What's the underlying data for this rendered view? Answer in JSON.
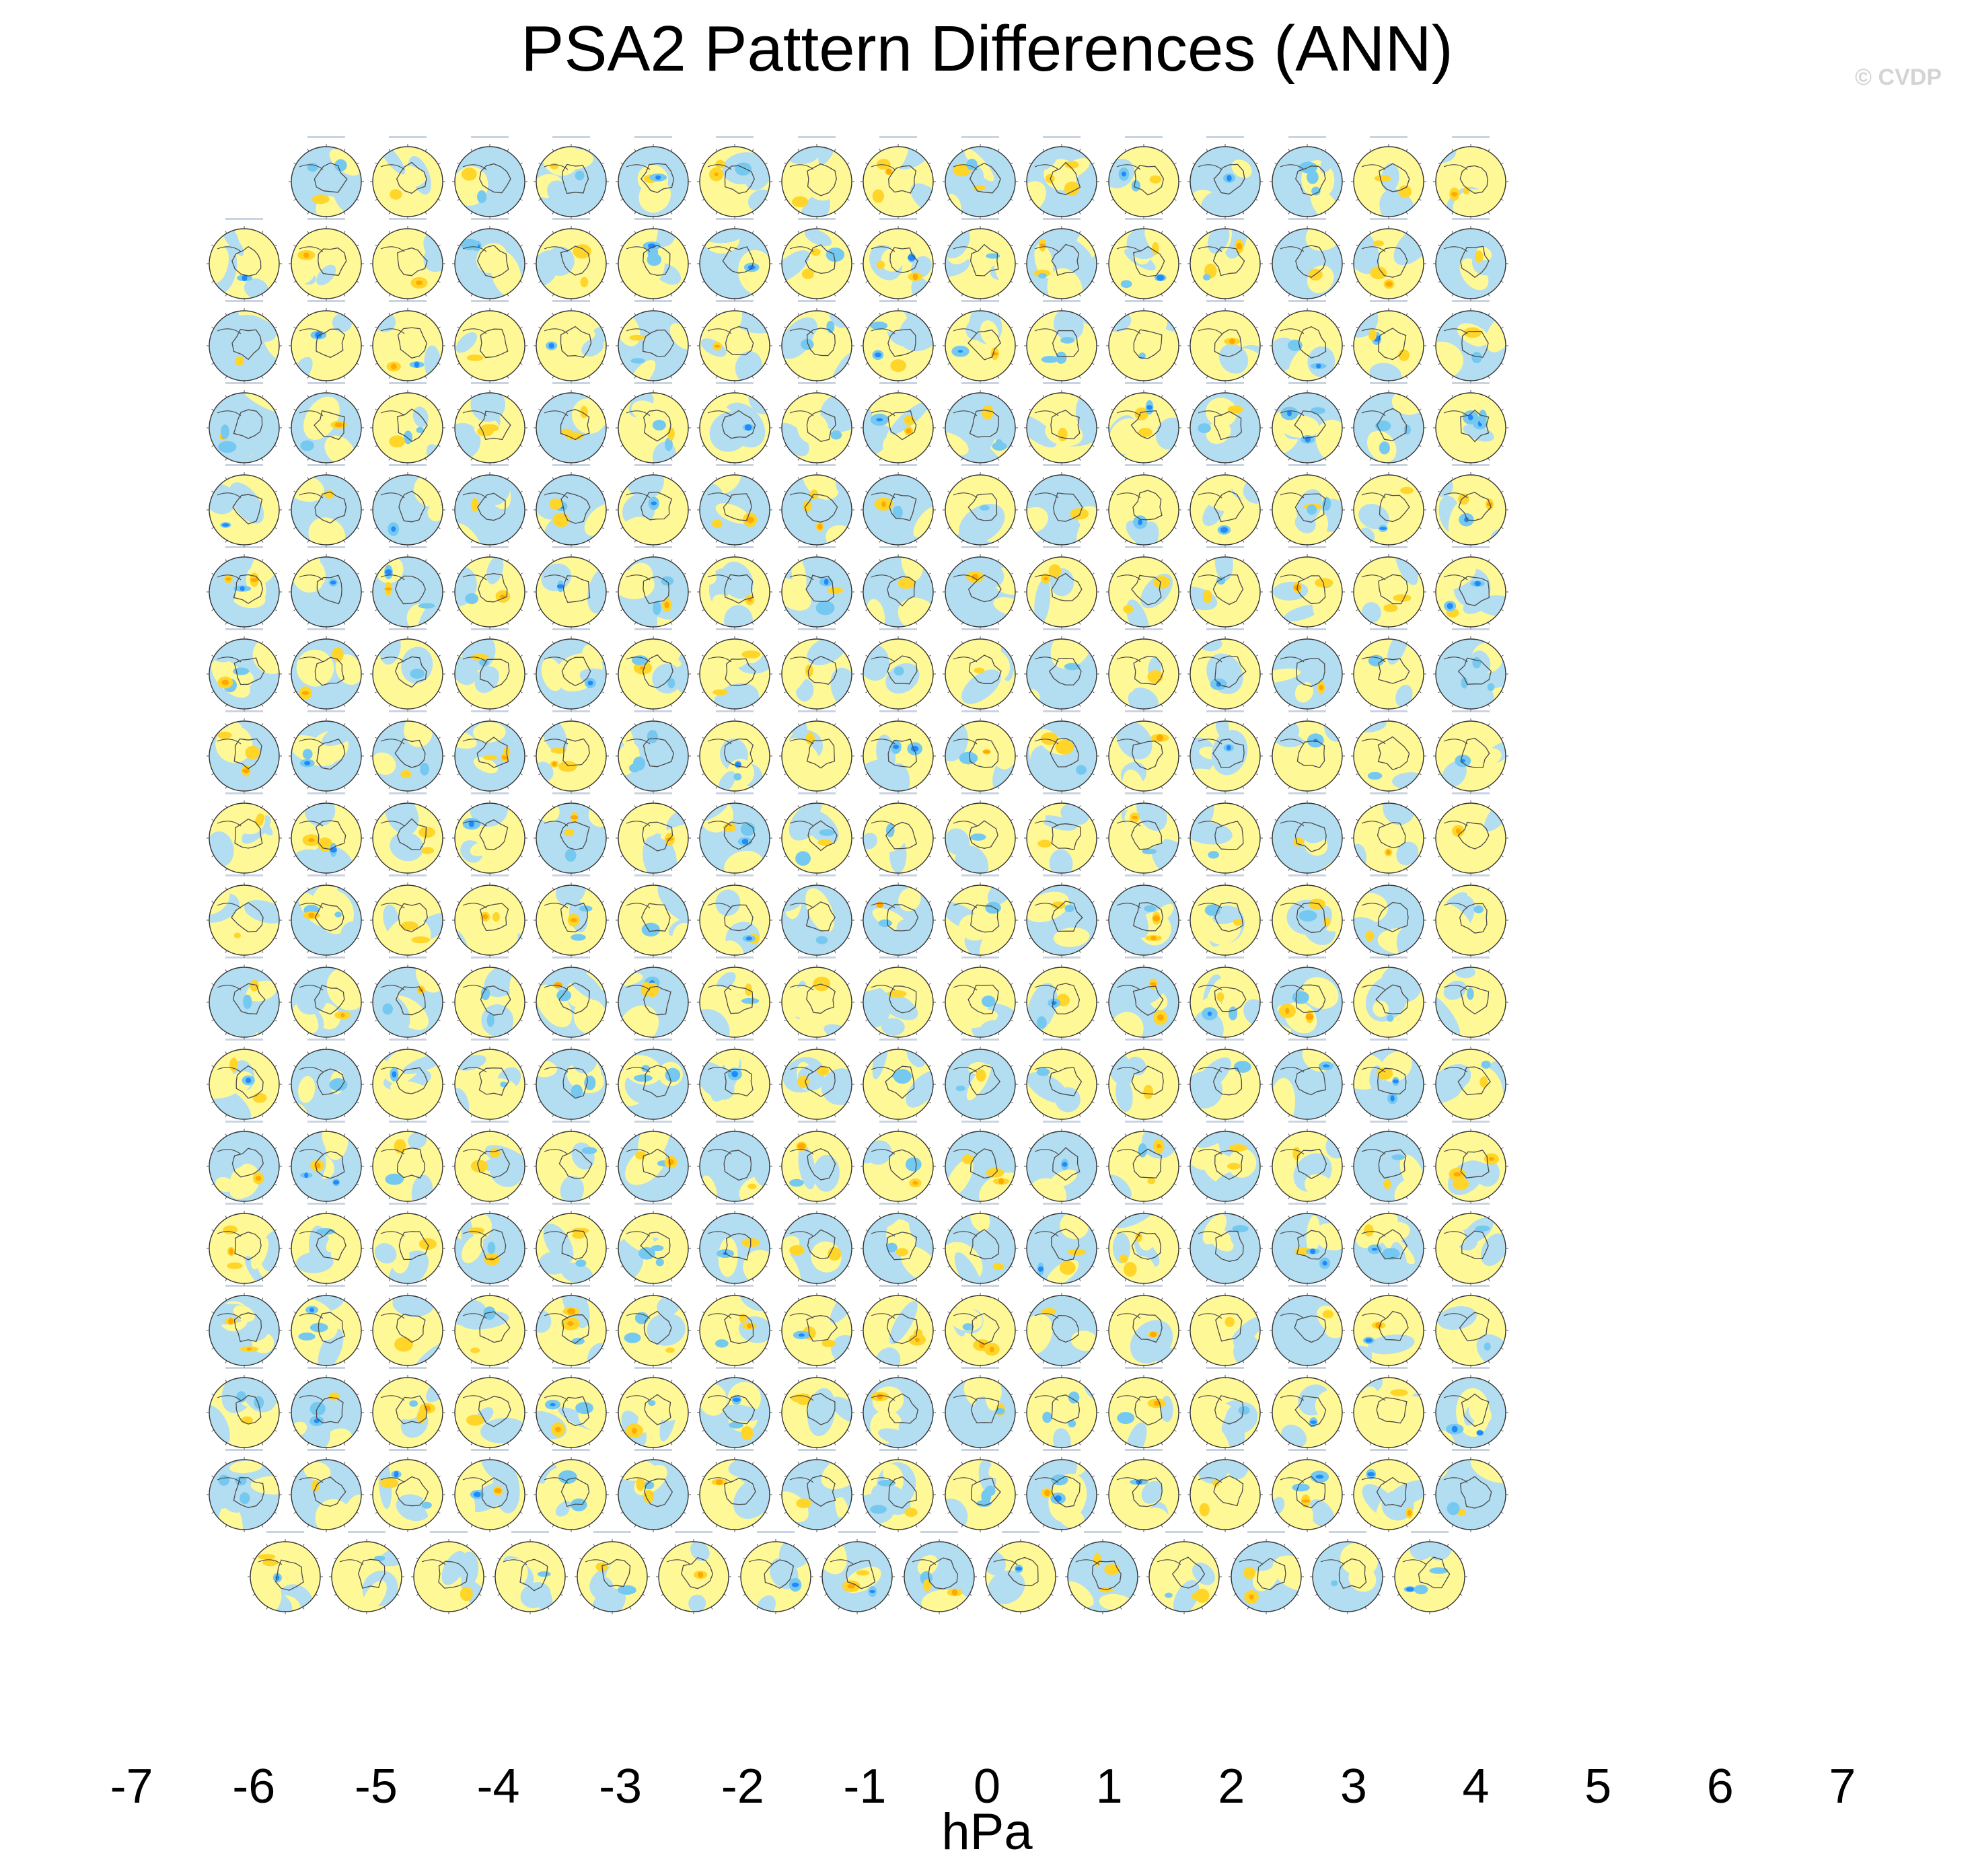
{
  "title": "PSA2 Pattern Differences (ANN)",
  "watermark": "© CVDP",
  "colorbar": {
    "unit": "hPa",
    "labels": [
      "-7",
      "-6",
      "-5",
      "-4",
      "-3",
      "-2",
      "-1",
      "0",
      "1",
      "2",
      "3",
      "4",
      "5",
      "6",
      "7"
    ],
    "colors": [
      "#7f1ff0",
      "#1e00fb",
      "#2a46e6",
      "#2f72e8",
      "#2189fb",
      "#00c0f8",
      "#75c9f1",
      "#b3ddf1",
      "#fff897",
      "#ffd52a",
      "#ffa800",
      "#ff7700",
      "#ff2d00",
      "#e60000",
      "#cc1a1a",
      "#ffb4b8"
    ]
  },
  "chart_data": {
    "type": "heatmap",
    "title": "PSA2 Pattern Differences (ANN)",
    "colorbar_unit": "hPa",
    "colorbar_ticks": [
      -7,
      -6,
      -5,
      -4,
      -3,
      -2,
      -1,
      0,
      1,
      2,
      3,
      4,
      5,
      6,
      7
    ],
    "panel_rows": [
      15,
      16,
      16,
      16,
      16,
      16,
      16,
      16,
      16,
      16,
      16,
      16,
      16,
      16,
      16,
      16,
      16,
      15
    ],
    "panel_count": 286,
    "projection": "south polar stereographic",
    "panel_colors": {
      "neutral_positive": "#fff897",
      "neutral_negative": "#b3ddf1",
      "moderate_positive": "#ffd52a",
      "moderate_negative": "#75c9f1",
      "strong_positive": "#ffa800",
      "strong_negative": "#2189fb"
    }
  }
}
